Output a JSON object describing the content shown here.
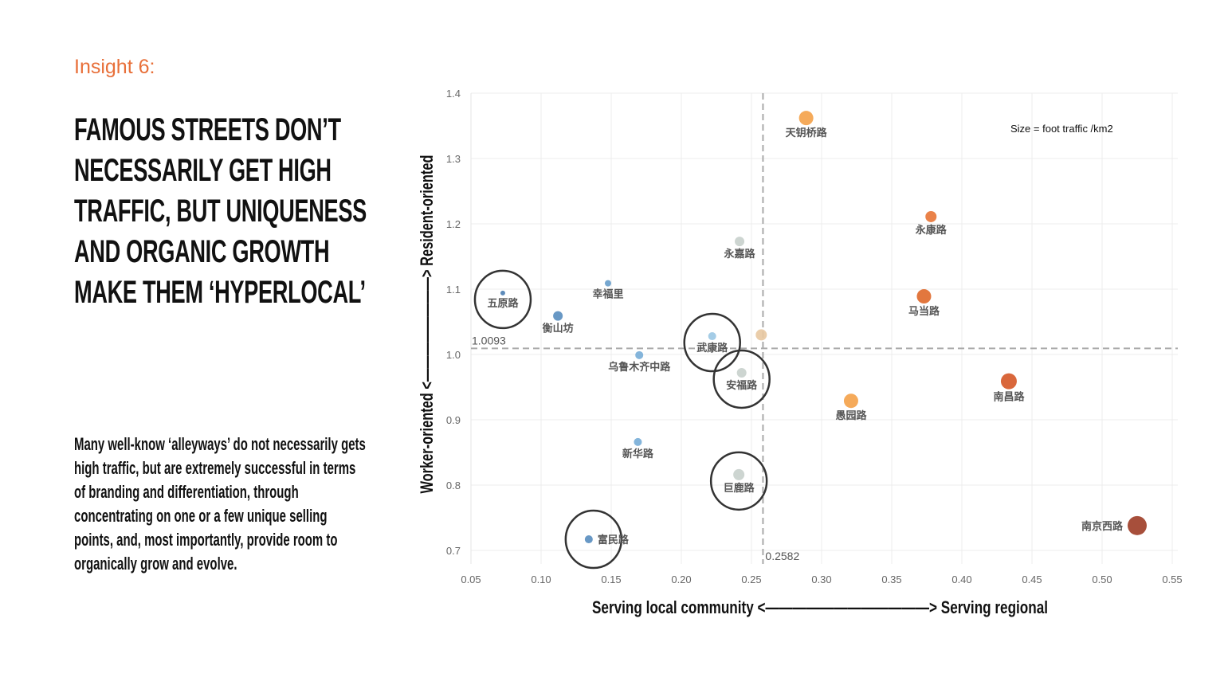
{
  "insight_label": "Insight 6:",
  "headline": "FAMOUS STREETS DON’T NECESSARILY GET HIGH TRAFFIC, BUT UNIQUENESS AND ORGANIC GROWTH MAKE THEM ‘HYPERLOCAL’",
  "body": "Many well-know ‘alleyways’ do not necessarily gets high traffic, but are extremely successful in terms of branding and differentiation, through concentrating on one or a few unique selling points, and, most importantly, provide room to organically grow and evolve.",
  "chart_data": {
    "type": "scatter",
    "xlabel": "Serving local community <————————————> Serving regional",
    "ylabel": "Worker-oriented <————————> Resident-oriented",
    "size_legend": "Size = foot traffic /km2",
    "xlim": [
      0.05,
      0.55
    ],
    "ylim": [
      0.68,
      1.41
    ],
    "x_ticks": [
      "0.05",
      "0.10",
      "0.15",
      "0.20",
      "0.25",
      "0.30",
      "0.35",
      "0.40",
      "0.45",
      "0.50",
      "0.55"
    ],
    "y_ticks": [
      "0.7",
      "0.8",
      "0.9",
      "1.0",
      "1.1",
      "1.2",
      "1.3",
      "1.4"
    ],
    "grid": true,
    "reference_lines": {
      "x": 0.2582,
      "x_label": "0.2582",
      "y": 1.0093,
      "y_label": "1.0093"
    },
    "points": [
      {
        "name": "天钥桥路",
        "x": 0.289,
        "y": 1.362,
        "size": 9,
        "color": "#f4a34c",
        "circled": false,
        "label_pos": "below"
      },
      {
        "name": "永康路",
        "x": 0.378,
        "y": 1.211,
        "size": 7,
        "color": "#e8773a",
        "circled": false,
        "label_pos": "below"
      },
      {
        "name": "永嘉路",
        "x": 0.2415,
        "y": 1.173,
        "size": 6,
        "color": "#c9d1cd",
        "circled": false,
        "label_pos": "below"
      },
      {
        "name": "马当路",
        "x": 0.373,
        "y": 1.089,
        "size": 9,
        "color": "#e06b2e",
        "circled": false,
        "label_pos": "below"
      },
      {
        "name": "五原路",
        "x": 0.0727,
        "y": 1.094,
        "size": 3,
        "color": "#4f81b4",
        "circled": true,
        "label_pos": "below"
      },
      {
        "name": "幸福里",
        "x": 0.1477,
        "y": 1.109,
        "size": 4,
        "color": "#6a9fcc",
        "circled": false,
        "label_pos": "below"
      },
      {
        "name": "衡山坊",
        "x": 0.112,
        "y": 1.059,
        "size": 6,
        "color": "#5b8fc0",
        "circled": false,
        "label_pos": "below"
      },
      {
        "name": "武康路",
        "x": 0.222,
        "y": 1.028,
        "size": 5,
        "color": "#9cc8e4",
        "circled": true,
        "label_pos": "below"
      },
      {
        "name": "",
        "x": 0.257,
        "y": 1.03,
        "size": 7,
        "color": "#e8c9a3",
        "circled": false,
        "label_pos": "none"
      },
      {
        "name": "乌鲁木齐中路",
        "x": 0.17,
        "y": 0.999,
        "size": 5,
        "color": "#7aafd8",
        "circled": false,
        "label_pos": "below"
      },
      {
        "name": "安福路",
        "x": 0.243,
        "y": 0.972,
        "size": 6,
        "color": "#c9d1cd",
        "circled": true,
        "label_pos": "below"
      },
      {
        "name": "愚园路",
        "x": 0.321,
        "y": 0.929,
        "size": 9,
        "color": "#f4a34c",
        "circled": false,
        "label_pos": "below"
      },
      {
        "name": "南昌路",
        "x": 0.4335,
        "y": 0.959,
        "size": 10,
        "color": "#d65a2a",
        "circled": false,
        "label_pos": "below"
      },
      {
        "name": "新华路",
        "x": 0.169,
        "y": 0.866,
        "size": 5,
        "color": "#7aafd8",
        "circled": false,
        "label_pos": "below"
      },
      {
        "name": "巨鹿路",
        "x": 0.241,
        "y": 0.816,
        "size": 7,
        "color": "#c9d1cd",
        "circled": true,
        "label_pos": "below"
      },
      {
        "name": "富民路",
        "x": 0.134,
        "y": 0.717,
        "size": 5,
        "color": "#5b8fc0",
        "circled": true,
        "label_pos": "right"
      },
      {
        "name": "南京西路",
        "x": 0.525,
        "y": 0.738,
        "size": 12,
        "color": "#a0402a",
        "circled": false,
        "label_pos": "left"
      }
    ]
  }
}
